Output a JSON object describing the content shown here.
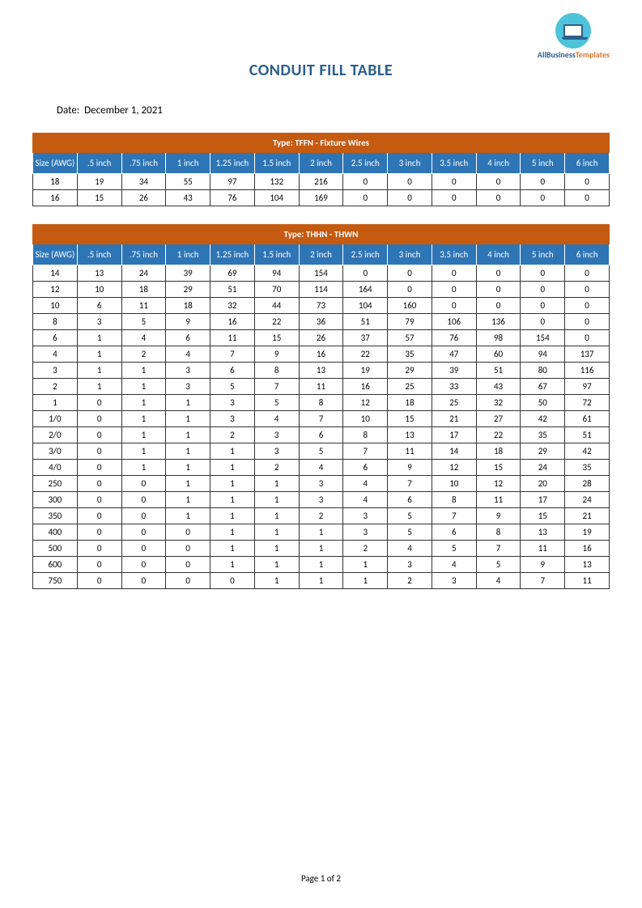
{
  "logo": {
    "line1": "AllBusiness",
    "line2": "Templates"
  },
  "title": "CONDUIT FILL TABLE",
  "date_label": "Date:",
  "date_value": "December 1, 2021",
  "footer": "Page 1 of 2",
  "colors": {
    "title": "#2c5f8d",
    "type_header_bg": "#c55a11",
    "col_header_bg": "#2e75b6",
    "header_fg": "#ffffff",
    "cell_border": "#333333",
    "page_bg": "#ffffff",
    "logo_circle": "#4ec3d9"
  },
  "tables": [
    {
      "type_label": "Type: TFFN - Fixture Wires",
      "columns": [
        "Size (AWG)",
        ".5 inch",
        ".75 inch",
        "1 inch",
        "1.25 inch",
        "1.5 inch",
        "2 inch",
        "2.5 inch",
        "3 inch",
        "3.5 inch",
        "4 inch",
        "5 inch",
        "6 inch"
      ],
      "rows": [
        [
          "18",
          "19",
          "34",
          "55",
          "97",
          "132",
          "216",
          "0",
          "0",
          "0",
          "0",
          "0",
          "0"
        ],
        [
          "16",
          "15",
          "26",
          "43",
          "76",
          "104",
          "169",
          "0",
          "0",
          "0",
          "0",
          "0",
          "0"
        ]
      ]
    },
    {
      "type_label": "Type: THHN - THWN",
      "columns": [
        "Size (AWG)",
        ".5 inch",
        ".75 inch",
        "1 inch",
        "1.25 inch",
        "1.5  inch",
        "2 inch",
        "2.5 inch",
        "3 inch",
        "3.5 inch",
        "4 inch",
        "5 inch",
        "6 inch"
      ],
      "rows": [
        [
          "14",
          "13",
          "24",
          "39",
          "69",
          "94",
          "154",
          "0",
          "0",
          "0",
          "0",
          "0",
          "0"
        ],
        [
          "12",
          "10",
          "18",
          "29",
          "51",
          "70",
          "114",
          "164",
          "0",
          "0",
          "0",
          "0",
          "0"
        ],
        [
          "10",
          "6",
          "11",
          "18",
          "32",
          "44",
          "73",
          "104",
          "160",
          "0",
          "0",
          "0",
          "0"
        ],
        [
          "8",
          "3",
          "5",
          "9",
          "16",
          "22",
          "36",
          "51",
          "79",
          "106",
          "136",
          "0",
          "0"
        ],
        [
          "6",
          "1",
          "4",
          "6",
          "11",
          "15",
          "26",
          "37",
          "57",
          "76",
          "98",
          "154",
          "0"
        ],
        [
          "4",
          "1",
          "2",
          "4",
          "7",
          "9",
          "16",
          "22",
          "35",
          "47",
          "60",
          "94",
          "137"
        ],
        [
          "3",
          "1",
          "1",
          "3",
          "6",
          "8",
          "13",
          "19",
          "29",
          "39",
          "51",
          "80",
          "116"
        ],
        [
          "2",
          "1",
          "1",
          "3",
          "5",
          "7",
          "11",
          "16",
          "25",
          "33",
          "43",
          "67",
          "97"
        ],
        [
          "1",
          "0",
          "1",
          "1",
          "3",
          "5",
          "8",
          "12",
          "18",
          "25",
          "32",
          "50",
          "72"
        ],
        [
          "1/0",
          "0",
          "1",
          "1",
          "3",
          "4",
          "7",
          "10",
          "15",
          "21",
          "27",
          "42",
          "61"
        ],
        [
          "2/0",
          "0",
          "1",
          "1",
          "2",
          "3",
          "6",
          "8",
          "13",
          "17",
          "22",
          "35",
          "51"
        ],
        [
          "3/0",
          "0",
          "1",
          "1",
          "1",
          "3",
          "5",
          "7",
          "11",
          "14",
          "18",
          "29",
          "42"
        ],
        [
          "4/0",
          "0",
          "1",
          "1",
          "1",
          "2",
          "4",
          "6",
          "9",
          "12",
          "15",
          "24",
          "35"
        ],
        [
          "250",
          "0",
          "0",
          "1",
          "1",
          "1",
          "3",
          "4",
          "7",
          "10",
          "12",
          "20",
          "28"
        ],
        [
          "300",
          "0",
          "0",
          "1",
          "1",
          "1",
          "3",
          "4",
          "6",
          "8",
          "11",
          "17",
          "24"
        ],
        [
          "350",
          "0",
          "0",
          "1",
          "1",
          "1",
          "2",
          "3",
          "5",
          "7",
          "9",
          "15",
          "21"
        ],
        [
          "400",
          "0",
          "0",
          "0",
          "1",
          "1",
          "1",
          "3",
          "5",
          "6",
          "8",
          "13",
          "19"
        ],
        [
          "500",
          "0",
          "0",
          "0",
          "1",
          "1",
          "1",
          "2",
          "4",
          "5",
          "7",
          "11",
          "16"
        ],
        [
          "600",
          "0",
          "0",
          "0",
          "1",
          "1",
          "1",
          "1",
          "3",
          "4",
          "5",
          "9",
          "13"
        ],
        [
          "750",
          "0",
          "0",
          "0",
          "0",
          "1",
          "1",
          "1",
          "2",
          "3",
          "4",
          "7",
          "11"
        ]
      ]
    }
  ]
}
